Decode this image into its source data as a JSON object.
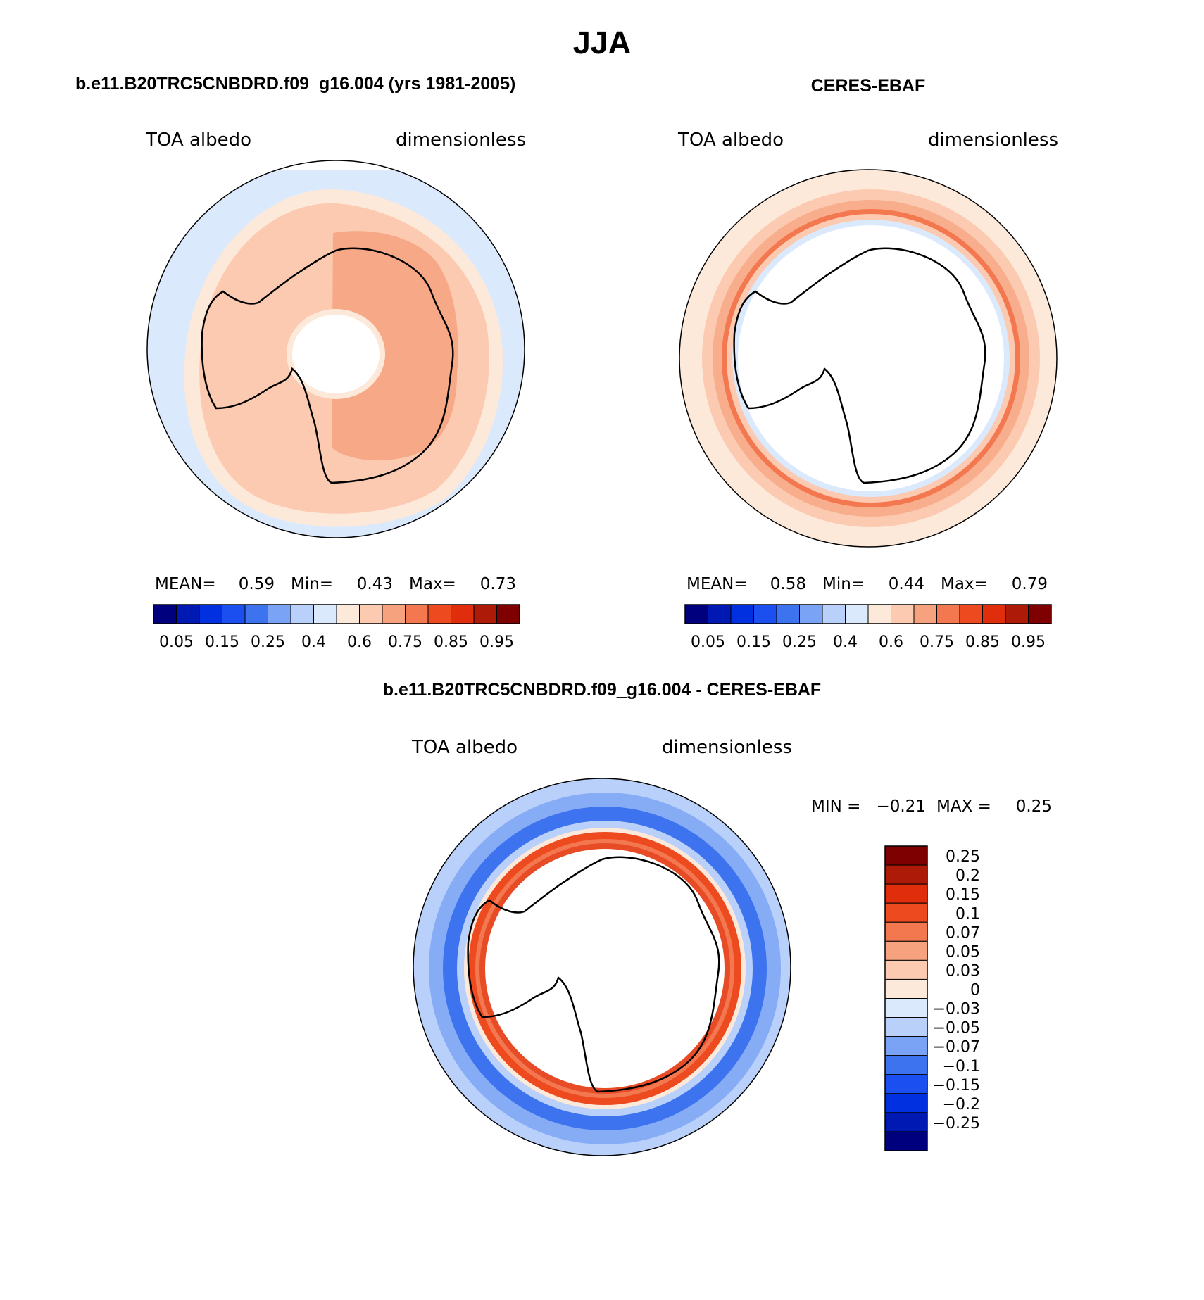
{
  "title": "JJA",
  "panels": [
    {
      "title": "b.e11.B20TRC5CNBDRD.f09_g16.004 (yrs 1981-2005)",
      "left_label": "TOA albedo",
      "right_label": "dimensionless",
      "stats": {
        "mean_label": "MEAN=",
        "mean": "0.59",
        "min_label": "Min=",
        "min": "0.43",
        "max_label": "Max=",
        "max": "0.73"
      }
    },
    {
      "title": "CERES-EBAF",
      "left_label": "TOA albedo",
      "right_label": "dimensionless",
      "stats": {
        "mean_label": "MEAN=",
        "mean": "0.58",
        "min_label": "Min=",
        "min": "0.44",
        "max_label": "Max=",
        "max": "0.79"
      }
    },
    {
      "title": "b.e11.B20TRC5CNBDRD.f09_g16.004 - CERES-EBAF",
      "left_label": "TOA albedo",
      "right_label": "dimensionless",
      "stats": {
        "min_label": "MIN =",
        "min": "−0.21",
        "max_label": "MAX =",
        "max": "0.25"
      }
    }
  ],
  "colors": {
    "abs_scale": [
      "#00007f",
      "#0019b3",
      "#0030e0",
      "#1b4fef",
      "#3e73f0",
      "#7ba3f5",
      "#b9d0fa",
      "#dbe9fc",
      "#fde9da",
      "#fbcab0",
      "#f6a27f",
      "#f37850",
      "#ee4a20",
      "#e02e0c",
      "#ad1b08",
      "#7f0000"
    ],
    "diff_scale": [
      "#00007f",
      "#0019b3",
      "#0030e0",
      "#1b4fef",
      "#3e73f0",
      "#7ba3f5",
      "#b9d0fa",
      "#dbe9fc",
      "#fde9da",
      "#fbcab0",
      "#f6a27f",
      "#f37850",
      "#ee4a20",
      "#e02e0c",
      "#ad1b08",
      "#7f0000"
    ]
  },
  "chart_data": [
    {
      "type": "heatmap",
      "projection": "south polar stereographic",
      "title": "b.e11.B20TRC5CNBDRD.f09_g16.004 (yrs 1981-2005)",
      "variable": "TOA albedo",
      "units": "dimensionless",
      "mean": 0.59,
      "min": 0.43,
      "max": 0.73,
      "levels": [
        0.05,
        0.1,
        0.15,
        0.2,
        0.25,
        0.3,
        0.4,
        0.5,
        0.6,
        0.7,
        0.75,
        0.8,
        0.85,
        0.9,
        0.95
      ],
      "tick_labels": [
        "0.05",
        "0.15",
        "0.25",
        "0.4",
        "0.6",
        "0.75",
        "0.85",
        "0.95"
      ]
    },
    {
      "type": "heatmap",
      "projection": "south polar stereographic",
      "title": "CERES-EBAF",
      "variable": "TOA albedo",
      "units": "dimensionless",
      "mean": 0.58,
      "min": 0.44,
      "max": 0.79,
      "levels": [
        0.05,
        0.1,
        0.15,
        0.2,
        0.25,
        0.3,
        0.4,
        0.5,
        0.6,
        0.7,
        0.75,
        0.8,
        0.85,
        0.9,
        0.95
      ],
      "tick_labels": [
        "0.05",
        "0.15",
        "0.25",
        "0.4",
        "0.6",
        "0.75",
        "0.85",
        "0.95"
      ]
    },
    {
      "type": "heatmap",
      "projection": "south polar stereographic",
      "title": "b.e11.B20TRC5CNBDRD.f09_g16.004 - CERES-EBAF",
      "variable": "TOA albedo",
      "units": "dimensionless",
      "min": -0.21,
      "max": 0.25,
      "levels": [
        0.25,
        0.2,
        0.15,
        0.1,
        0.07,
        0.05,
        0.03,
        0,
        -0.03,
        -0.05,
        -0.07,
        -0.1,
        -0.15,
        -0.2,
        -0.25
      ],
      "tick_labels": [
        "0.25",
        "0.2",
        "0.15",
        "0.1",
        "0.07",
        "0.05",
        "0.03",
        "0",
        "−0.03",
        "−0.05",
        "−0.07",
        "−0.1",
        "−0.15",
        "−0.2",
        "−0.25"
      ]
    }
  ]
}
